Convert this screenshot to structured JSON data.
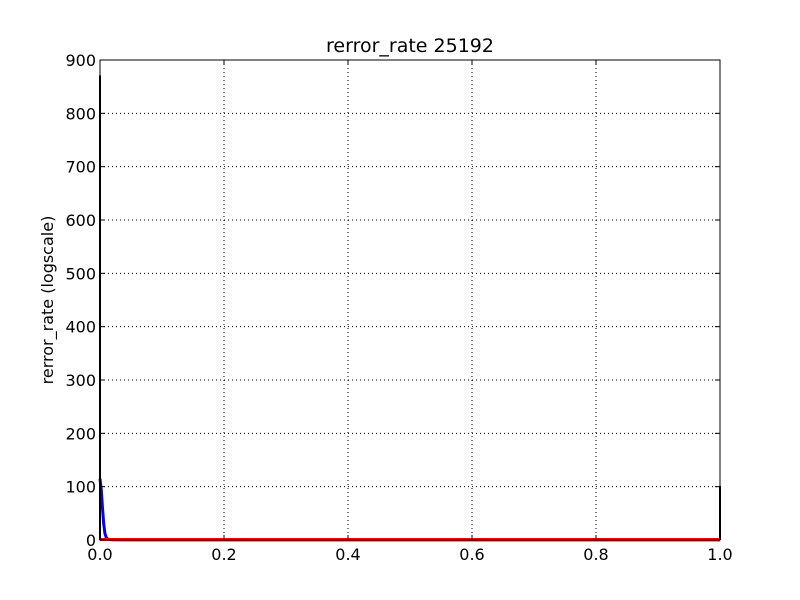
{
  "chart_data": {
    "type": "line",
    "title": "rerror_rate 25192",
    "xlabel": "",
    "ylabel": "rerror_rate (logscale)",
    "xlim": [
      0,
      1
    ],
    "ylim": [
      0,
      900
    ],
    "x_ticks": [
      "0.0",
      "0.2",
      "0.4",
      "0.6",
      "0.8",
      "1.0"
    ],
    "y_ticks": [
      "0",
      "100",
      "200",
      "300",
      "400",
      "500",
      "600",
      "700",
      "800",
      "900"
    ],
    "grid": true,
    "series": [
      {
        "color": "#0000ff",
        "x": [
          0.0,
          0.002,
          0.004,
          0.006,
          0.008,
          0.01,
          0.012,
          0.015,
          0.02,
          0.05,
          0.2,
          0.5,
          0.8,
          1.0
        ],
        "y": [
          115,
          95,
          60,
          30,
          12,
          5,
          2,
          1,
          0.5,
          0.3,
          0.2,
          0.2,
          0.2,
          0.2
        ]
      },
      {
        "color": "#ff0000",
        "x": [
          0.0,
          0.2,
          0.4,
          0.6,
          0.8,
          1.0
        ],
        "y": [
          1,
          1,
          1,
          1,
          1,
          1
        ]
      },
      {
        "color": "#000000",
        "x": [
          0.0,
          0.0,
          0.0
        ],
        "y": [
          0,
          870,
          0
        ]
      },
      {
        "color": "#000000",
        "x": [
          1.0,
          1.0,
          1.0
        ],
        "y": [
          0,
          100,
          0
        ]
      }
    ]
  }
}
